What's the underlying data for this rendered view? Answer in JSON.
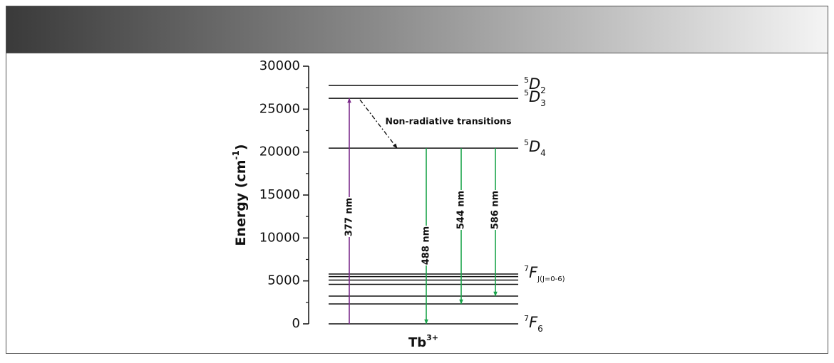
{
  "chart_data": {
    "type": "energy_levels",
    "ylabel": {
      "main": "Energy (cm",
      "sup": "-1",
      "tail": ")"
    },
    "xlabel": {
      "main": "Tb",
      "sup": "3+"
    },
    "ylim": [
      0,
      30000
    ],
    "yticks": [
      0,
      5000,
      10000,
      15000,
      20000,
      25000,
      30000
    ],
    "yminor": [
      2500,
      7500,
      12500,
      17500,
      22500,
      27500
    ],
    "levels": [
      {
        "energy": 27750,
        "label": {
          "sup": "5",
          "main": "D",
          "sub": "2"
        }
      },
      {
        "energy": 26260,
        "label": {
          "sup": "5",
          "main": "D",
          "sub": "3"
        }
      },
      {
        "energy": 20460,
        "label": {
          "sup": "5",
          "main": "D",
          "sub": "4"
        }
      },
      {
        "energy": 5800,
        "label": {
          "sup": "7",
          "main": "F",
          "sub": "J(J=0-6)"
        }
      },
      {
        "energy": 5500
      },
      {
        "energy": 5100
      },
      {
        "energy": 4600
      },
      {
        "energy": 3230
      },
      {
        "energy": 2320
      },
      {
        "energy": 0,
        "label": {
          "sup": "7",
          "main": "F",
          "sub": "6"
        }
      }
    ],
    "transitions": [
      {
        "label": "377 nm",
        "from": 0,
        "to": 26260,
        "color": "#7b2a8a",
        "label_color": "#2f4a8c"
      },
      {
        "label": "488 nm",
        "from": 20460,
        "to": 0,
        "color": "#1aa34a",
        "label_color": "#111111"
      },
      {
        "label": "544 nm",
        "from": 20460,
        "to": 2320,
        "color": "#1aa34a",
        "label_color": "#111111"
      },
      {
        "label": "586 nm",
        "from": 20460,
        "to": 3230,
        "color": "#1aa34a",
        "label_color": "#111111"
      }
    ],
    "nonradiative": {
      "label": "Non-radiative transitions",
      "from": 26260,
      "to": 20460,
      "color": "#e0262d"
    }
  }
}
